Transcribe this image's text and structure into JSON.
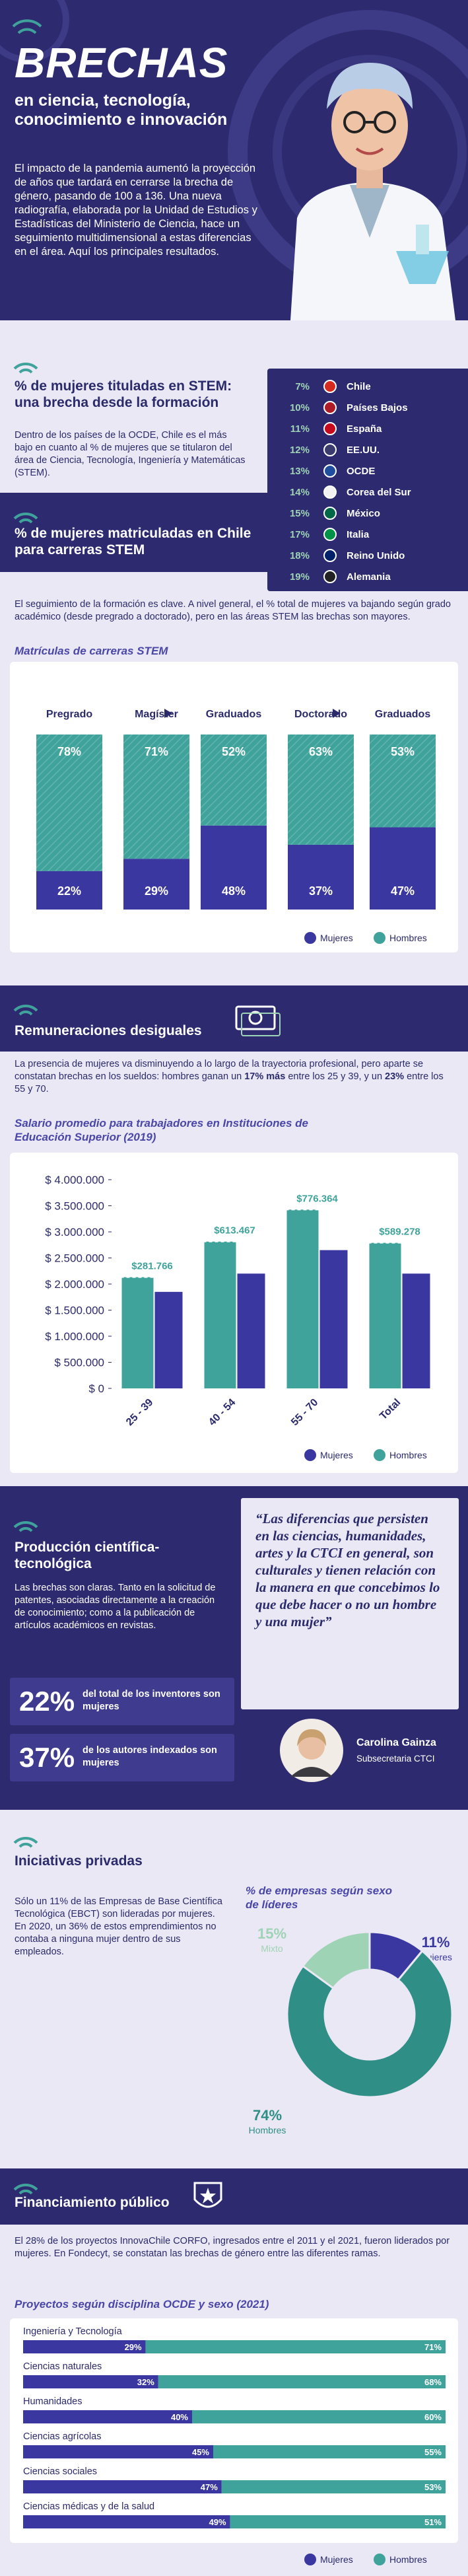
{
  "header": {
    "title": "BRECHAS",
    "subtitle": "en ciencia, tecnología, conocimiento e innovación",
    "intro": "El impacto de la pandemia aumentó la proyección de años que tardará en cerrarse la brecha de género, pasando de 100 a 136. Una nueva radiografía, elaborada por la Unidad de Estudios y Estadísticas del Ministerio de Ciencia, hace un seguimiento multidimensional a estas diferencias en el área. Aquí los principales resultados."
  },
  "graduates": {
    "heading": "% de mujeres tituladas en STEM: una brecha desde la formación",
    "text": "Dentro de los países de la OCDE, Chile es el más bajo en cuanto al % de mujeres que se titularon del área de Ciencia, Tecnología, Ingeniería y Matemáticas (STEM).",
    "rows": [
      [
        "7%",
        "Chile"
      ],
      [
        "10%",
        "Países Bajos"
      ],
      [
        "11%",
        "España"
      ],
      [
        "12%",
        "EE.UU."
      ],
      [
        "13%",
        "OCDE"
      ],
      [
        "14%",
        "Corea del Sur"
      ],
      [
        "15%",
        "México"
      ],
      [
        "17%",
        "Italia"
      ],
      [
        "18%",
        "Reino Unido"
      ],
      [
        "19%",
        "Alemania"
      ]
    ]
  },
  "enrollment": {
    "heading": "% de mujeres matriculadas en Chile para carreras STEM",
    "text": "El seguimiento de la formación es clave. A nivel general, el % total de mujeres va bajando según grado académico (desde pregrado a doctorado), pero en las áreas STEM las brechas son mayores.",
    "chart": {
      "type": "stacked-bar",
      "title": "Matrículas de carreras STEM",
      "categories": [
        "Pregrado",
        "Magíster",
        "Graduados",
        "Doctorado",
        "Graduados"
      ],
      "series": [
        {
          "name": "Mujeres",
          "color": "#3b37a0",
          "values": [
            22,
            29,
            48,
            37,
            47
          ],
          "value_labels": [
            "22%",
            "29%",
            "48%",
            "37%",
            "47%"
          ]
        },
        {
          "name": "Hombres",
          "color": "#3fa39b",
          "values": [
            78,
            71,
            52,
            63,
            53
          ],
          "value_labels": [
            "78%",
            "71%",
            "52%",
            "63%",
            "53%"
          ]
        }
      ]
    }
  },
  "salaries": {
    "heading": "Remuneraciones desiguales",
    "text": [
      "La presencia de mujeres va disminuyendo a lo largo de la trayectoria profesional, pero aparte se constatan brechas en los sueldos: hombres ganan un ",
      "17% más",
      " entre los 25 y 39, y un ",
      "23%",
      " entre los 55 y 70."
    ],
    "chart": {
      "type": "bar",
      "title": "Salario promedio para trabajadores en Instituciones de Educación Superior (2019)",
      "categories": [
        "25 - 39",
        "40 - 54",
        "55 - 70",
        "Total"
      ],
      "series": [
        {
          "name": "Mujeres",
          "color": "#3b37a0",
          "values": [
            1850000,
            2200000,
            2650000,
            2200000
          ]
        },
        {
          "name": "Hombres",
          "color": "#3fa39b",
          "values": [
            2131766,
            2813467,
            3426364,
            2789278
          ]
        }
      ],
      "gaps": {
        "values": [
          281766,
          613467,
          776364,
          589278
        ],
        "value_labels": [
          "$281.766",
          "$613.467",
          "$776.364",
          "$589.278"
        ]
      },
      "ylim": [
        0,
        4000000
      ],
      "yticks": [
        {
          "value": 0,
          "label": "$ 0"
        },
        {
          "value": 500000,
          "label": "$ 500.000"
        },
        {
          "value": 1000000,
          "label": "$ 1.000.000"
        },
        {
          "value": 1500000,
          "label": "$ 1.500.000"
        },
        {
          "value": 2000000,
          "label": "$ 2.000.000"
        },
        {
          "value": 2500000,
          "label": "$ 2.500.000"
        },
        {
          "value": 3000000,
          "label": "$ 3.000.000"
        },
        {
          "value": 3500000,
          "label": "$ 3.500.000"
        },
        {
          "value": 4000000,
          "label": "$ 4.000.000"
        }
      ]
    }
  },
  "production": {
    "heading": "Producción científica-tecnológica",
    "text": "Las brechas son claras. Tanto en la solicitud de patentes, asociadas directamente a la creación de conocimiento; como a la publicación de artículos académicos en revistas.",
    "stats": [
      [
        "22%",
        "del total de los inventores son mujeres"
      ],
      [
        "37%",
        "de los autores indexados son mujeres"
      ]
    ],
    "quote": "“Las diferencias que persisten en las ciencias, humanidades, artes y la CTCI en general, son culturales y tienen relación con la manera en que concebimos lo que debe hacer o no un hombre y una mujer”",
    "author": "Carolina Gainza",
    "role": "Subsecretaria CTCI"
  },
  "private": {
    "heading": "Iniciativas privadas",
    "text": "Sólo un 11% de las Empresas de Base Científica Tecnológica (EBCT) son lideradas por mujeres. En 2020, un 36% de estos emprendimientos no contaba a ninguna mujer dentro de sus empleados.",
    "chart": {
      "type": "donut",
      "title": "% de empresas según sexo de líderes",
      "categories": [
        "Mujeres",
        "Hombres",
        "Mixto"
      ],
      "values": [
        11,
        74,
        15
      ],
      "value_labels": [
        "11%",
        "74%",
        "15%"
      ],
      "colors": [
        "#3b37a0",
        "#2f8f86",
        "#9fd3b5"
      ]
    }
  },
  "funding": {
    "heading": "Financiamiento público",
    "text": "El 28% de los proyectos InnovaChile CORFO, ingresados entre el 2011 y el 2021, fueron liderados por mujeres. En Fondecyt, se constatan las brechas de género entre las diferentes ramas.",
    "chart": {
      "type": "stacked-hbar",
      "title": "Proyectos según disciplina OCDE y sexo (2021)",
      "categories": [
        "Ingeniería y Tecnología",
        "Ciencias naturales",
        "Humanidades",
        "Ciencias agrícolas",
        "Ciencias sociales",
        "Ciencias médicas y de la salud"
      ],
      "series": [
        {
          "name": "Mujeres",
          "color": "#3b37a0",
          "values": [
            29,
            32,
            40,
            45,
            47,
            49
          ],
          "value_labels": [
            "29%",
            "32%",
            "40%",
            "45%",
            "47%",
            "49%"
          ]
        },
        {
          "name": "Hombres",
          "color": "#3fa39b",
          "values": [
            71,
            68,
            60,
            55,
            53,
            51
          ],
          "value_labels": [
            "71%",
            "68%",
            "60%",
            "55%",
            "53%",
            "51%"
          ]
        }
      ]
    }
  }
}
